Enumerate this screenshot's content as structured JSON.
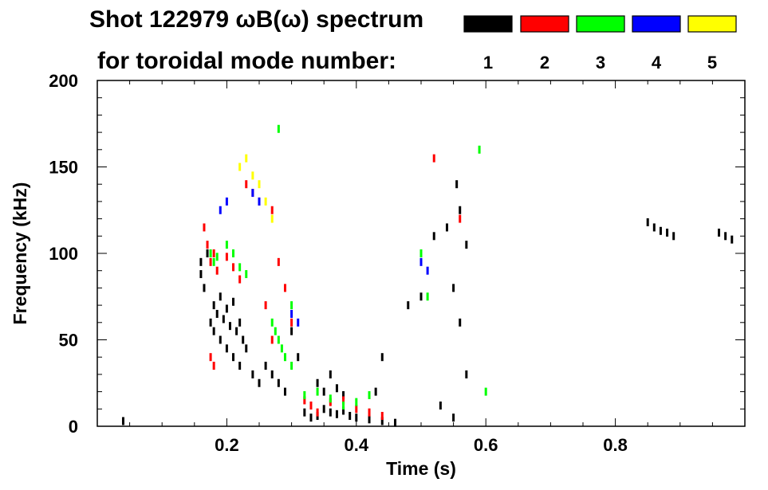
{
  "chart_data": {
    "type": "scatter",
    "title_line1": "Shot 122979 ωB(ω) spectrum",
    "title_line2": "for toroidal mode number:",
    "xlabel": "Time (s)",
    "ylabel": "Frequency (kHz)",
    "xlim": [
      0.0,
      1.0
    ],
    "ylim": [
      0,
      200
    ],
    "xticks": [
      {
        "value": 0.2,
        "label": "0.2"
      },
      {
        "value": 0.4,
        "label": "0.4"
      },
      {
        "value": 0.6,
        "label": "0.6"
      },
      {
        "value": 0.8,
        "label": "0.8"
      }
    ],
    "yticks": [
      {
        "value": 0,
        "label": "0"
      },
      {
        "value": 50,
        "label": "50"
      },
      {
        "value": 100,
        "label": "100"
      },
      {
        "value": 150,
        "label": "150"
      },
      {
        "value": 200,
        "label": "200"
      }
    ],
    "legend": [
      {
        "label": "1",
        "color": "#000000"
      },
      {
        "label": "2",
        "color": "#ff0000"
      },
      {
        "label": "3",
        "color": "#00ff00"
      },
      {
        "label": "4",
        "color": "#0000ff"
      },
      {
        "label": "5",
        "color": "#ffff00"
      }
    ],
    "series": [
      {
        "mode": "1",
        "color": "#000000",
        "points": [
          [
            0.04,
            3
          ],
          [
            0.16,
            95
          ],
          [
            0.16,
            88
          ],
          [
            0.165,
            80
          ],
          [
            0.17,
            100
          ],
          [
            0.175,
            60
          ],
          [
            0.18,
            70
          ],
          [
            0.18,
            55
          ],
          [
            0.185,
            65
          ],
          [
            0.19,
            75
          ],
          [
            0.19,
            50
          ],
          [
            0.195,
            62
          ],
          [
            0.2,
            68
          ],
          [
            0.2,
            45
          ],
          [
            0.205,
            58
          ],
          [
            0.21,
            72
          ],
          [
            0.21,
            40
          ],
          [
            0.215,
            55
          ],
          [
            0.22,
            60
          ],
          [
            0.22,
            35
          ],
          [
            0.225,
            50
          ],
          [
            0.23,
            45
          ],
          [
            0.24,
            30
          ],
          [
            0.25,
            25
          ],
          [
            0.26,
            35
          ],
          [
            0.27,
            30
          ],
          [
            0.28,
            25
          ],
          [
            0.29,
            20
          ],
          [
            0.3,
            55
          ],
          [
            0.31,
            40
          ],
          [
            0.32,
            8
          ],
          [
            0.33,
            5
          ],
          [
            0.34,
            6
          ],
          [
            0.35,
            10
          ],
          [
            0.36,
            8
          ],
          [
            0.37,
            7
          ],
          [
            0.38,
            9
          ],
          [
            0.39,
            6
          ],
          [
            0.4,
            5
          ],
          [
            0.42,
            4
          ],
          [
            0.44,
            3
          ],
          [
            0.46,
            2
          ],
          [
            0.34,
            25
          ],
          [
            0.35,
            20
          ],
          [
            0.36,
            30
          ],
          [
            0.37,
            22
          ],
          [
            0.38,
            18
          ],
          [
            0.43,
            20
          ],
          [
            0.44,
            40
          ],
          [
            0.48,
            70
          ],
          [
            0.5,
            75
          ],
          [
            0.52,
            110
          ],
          [
            0.54,
            115
          ],
          [
            0.555,
            140
          ],
          [
            0.56,
            125
          ],
          [
            0.57,
            105
          ],
          [
            0.55,
            80
          ],
          [
            0.53,
            12
          ],
          [
            0.55,
            5
          ],
          [
            0.57,
            30
          ],
          [
            0.56,
            60
          ],
          [
            0.85,
            118
          ],
          [
            0.86,
            115
          ],
          [
            0.87,
            113
          ],
          [
            0.88,
            112
          ],
          [
            0.89,
            110
          ],
          [
            0.96,
            112
          ],
          [
            0.97,
            110
          ],
          [
            0.98,
            108
          ]
        ]
      },
      {
        "mode": "2",
        "color": "#ff0000",
        "points": [
          [
            0.165,
            115
          ],
          [
            0.17,
            105
          ],
          [
            0.175,
            95
          ],
          [
            0.18,
            100
          ],
          [
            0.185,
            90
          ],
          [
            0.175,
            40
          ],
          [
            0.18,
            35
          ],
          [
            0.2,
            98
          ],
          [
            0.21,
            92
          ],
          [
            0.22,
            85
          ],
          [
            0.23,
            140
          ],
          [
            0.24,
            135
          ],
          [
            0.25,
            130
          ],
          [
            0.27,
            125
          ],
          [
            0.28,
            95
          ],
          [
            0.29,
            80
          ],
          [
            0.3,
            60
          ],
          [
            0.26,
            70
          ],
          [
            0.27,
            50
          ],
          [
            0.32,
            15
          ],
          [
            0.33,
            12
          ],
          [
            0.34,
            8
          ],
          [
            0.36,
            14
          ],
          [
            0.38,
            15
          ],
          [
            0.4,
            10
          ],
          [
            0.42,
            8
          ],
          [
            0.44,
            6
          ],
          [
            0.52,
            155
          ],
          [
            0.56,
            120
          ]
        ]
      },
      {
        "mode": "3",
        "color": "#00ff00",
        "points": [
          [
            0.175,
            100
          ],
          [
            0.18,
            95
          ],
          [
            0.185,
            98
          ],
          [
            0.2,
            105
          ],
          [
            0.21,
            100
          ],
          [
            0.22,
            92
          ],
          [
            0.23,
            88
          ],
          [
            0.27,
            60
          ],
          [
            0.275,
            55
          ],
          [
            0.28,
            50
          ],
          [
            0.285,
            45
          ],
          [
            0.29,
            40
          ],
          [
            0.3,
            35
          ],
          [
            0.28,
            172
          ],
          [
            0.3,
            70
          ],
          [
            0.32,
            18
          ],
          [
            0.34,
            20
          ],
          [
            0.36,
            16
          ],
          [
            0.38,
            12
          ],
          [
            0.4,
            14
          ],
          [
            0.42,
            18
          ],
          [
            0.5,
            100
          ],
          [
            0.51,
            75
          ],
          [
            0.59,
            160
          ],
          [
            0.6,
            20
          ]
        ]
      },
      {
        "mode": "4",
        "color": "#0000ff",
        "points": [
          [
            0.19,
            125
          ],
          [
            0.2,
            130
          ],
          [
            0.24,
            135
          ],
          [
            0.25,
            130
          ],
          [
            0.3,
            65
          ],
          [
            0.31,
            60
          ],
          [
            0.5,
            95
          ],
          [
            0.51,
            90
          ]
        ]
      },
      {
        "mode": "5",
        "color": "#ffff00",
        "points": [
          [
            0.22,
            150
          ],
          [
            0.23,
            155
          ],
          [
            0.24,
            145
          ],
          [
            0.25,
            140
          ],
          [
            0.26,
            130
          ],
          [
            0.27,
            120
          ]
        ]
      }
    ]
  }
}
